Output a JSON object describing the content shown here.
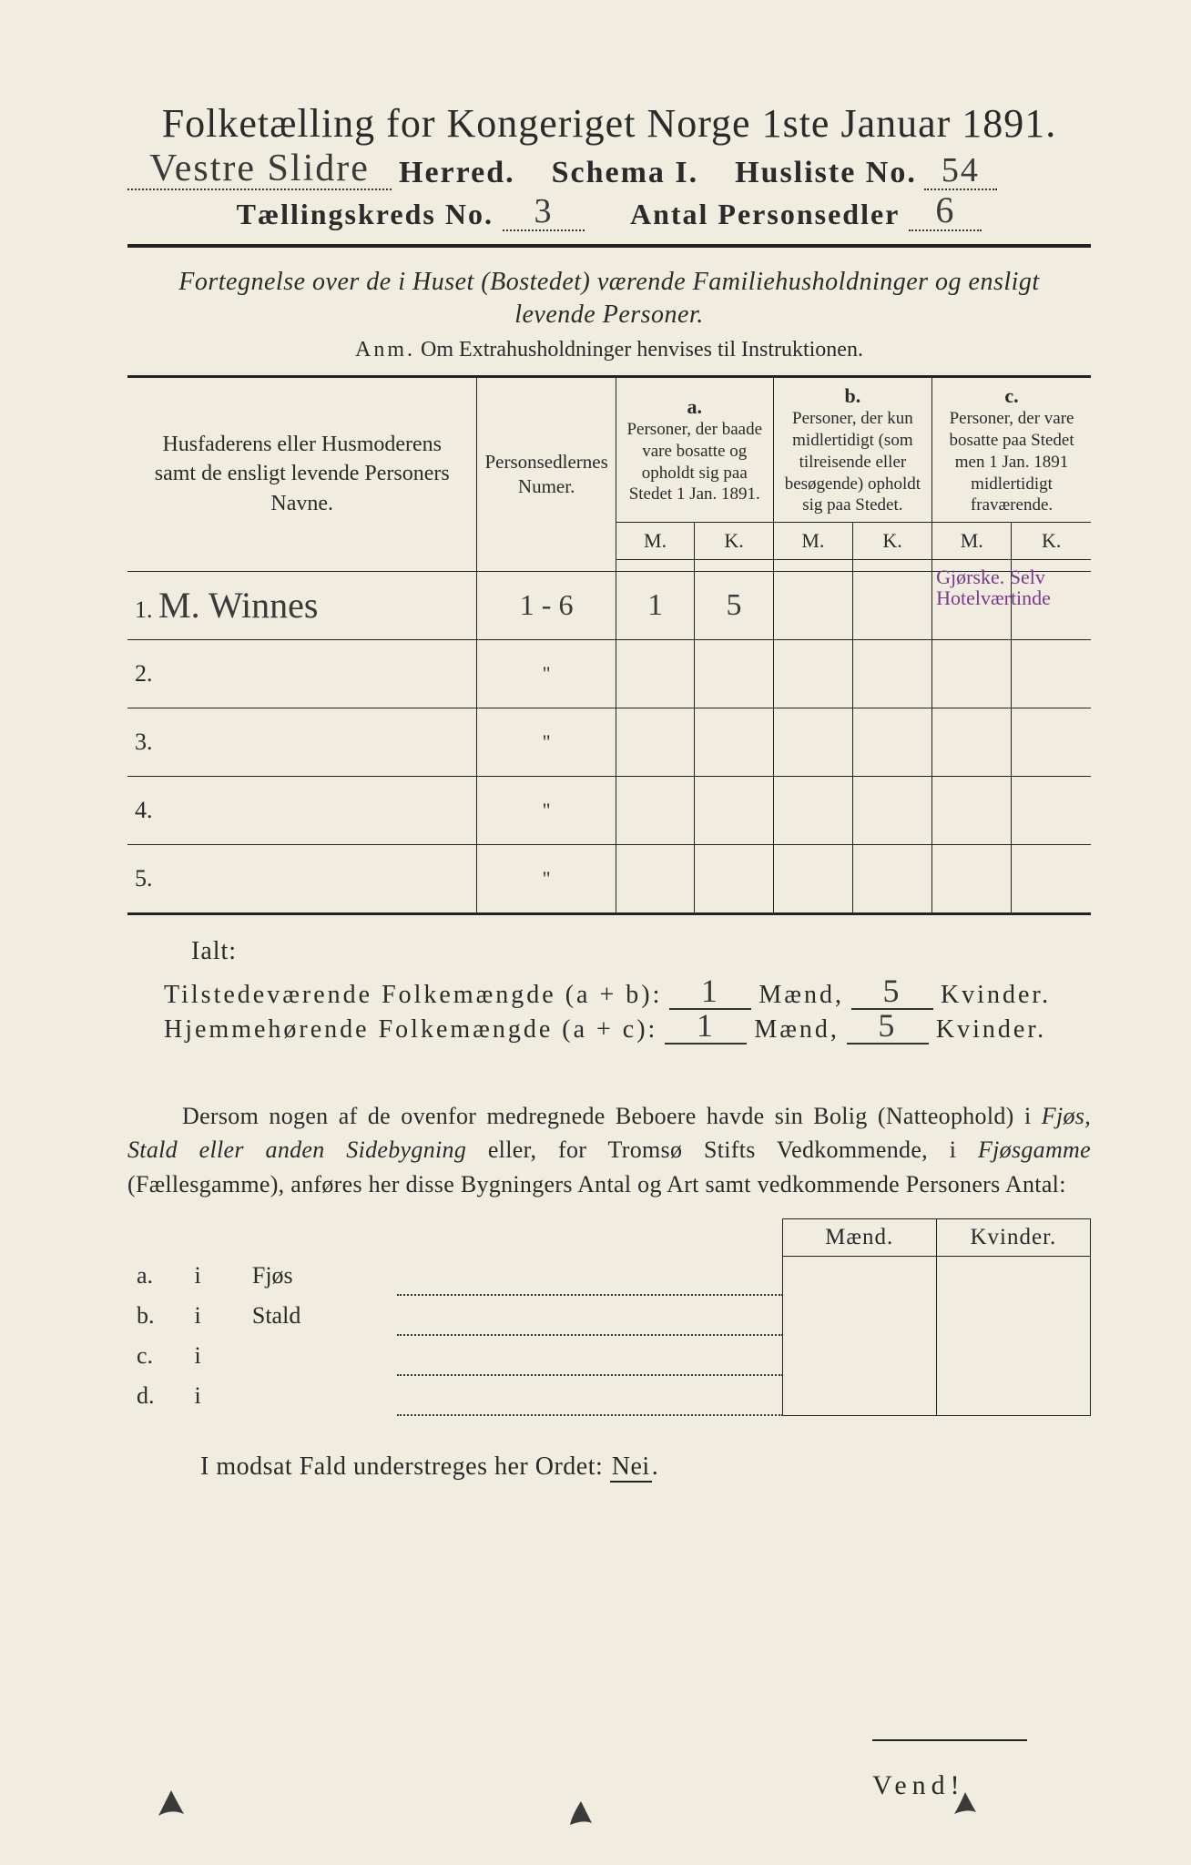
{
  "header": {
    "title": "Folketælling for Kongeriget Norge 1ste Januar 1891.",
    "herred_hw": "Vestre Slidre",
    "herred_label": "Herred.",
    "schema_label": "Schema I.",
    "husliste_label": "Husliste No.",
    "husliste_hw": "54",
    "kreds_label": "Tællingskreds No.",
    "kreds_hw": "3",
    "antal_label": "Antal Personsedler",
    "antal_hw": "6"
  },
  "intro": {
    "line1": "Fortegnelse over de i Huset (Bostedet) værende Familiehusholdninger og ensligt",
    "line2": "levende Personer.",
    "anm_label": "Anm.",
    "anm_text": "Om Extrahusholdninger henvises til Instruktionen."
  },
  "table": {
    "col_name": "Husfaderens eller Husmoderens samt de ensligt levende Personers Navne.",
    "col_num": "Personsedlernes Numer.",
    "col_a_letter": "a.",
    "col_a_desc": "Personer, der baade vare bosatte og opholdt sig paa Stedet 1 Jan. 1891.",
    "col_b_letter": "b.",
    "col_b_desc": "Personer, der kun midlertidigt (som tilreisende eller besøgende) opholdt sig paa Stedet.",
    "col_c_letter": "c.",
    "col_c_desc": "Personer, der vare bosatte paa Stedet men 1 Jan. 1891 midlertidigt fraværende.",
    "mk_m": "M.",
    "mk_k": "K.",
    "rows": [
      {
        "n": "1.",
        "name_hw": "M. Winnes",
        "num_hw": "1 - 6",
        "a_m": "1",
        "a_k": "5",
        "b_m": "",
        "b_k": "",
        "c_m": "",
        "c_k": "",
        "note": "Gjørske. Selv Hotelværtinde"
      },
      {
        "n": "2.",
        "name_hw": "",
        "num_hw": "\"",
        "a_m": "",
        "a_k": "",
        "b_m": "",
        "b_k": "",
        "c_m": "",
        "c_k": "",
        "note": ""
      },
      {
        "n": "3.",
        "name_hw": "",
        "num_hw": "\"",
        "a_m": "",
        "a_k": "",
        "b_m": "",
        "b_k": "",
        "c_m": "",
        "c_k": "",
        "note": ""
      },
      {
        "n": "4.",
        "name_hw": "",
        "num_hw": "\"",
        "a_m": "",
        "a_k": "",
        "b_m": "",
        "b_k": "",
        "c_m": "",
        "c_k": "",
        "note": ""
      },
      {
        "n": "5.",
        "name_hw": "",
        "num_hw": "\"",
        "a_m": "",
        "a_k": "",
        "b_m": "",
        "b_k": "",
        "c_m": "",
        "c_k": "",
        "note": ""
      }
    ]
  },
  "ialt": "Ialt:",
  "sums": {
    "line1_label": "Tilstedeværende Folkemængde (a + b):",
    "line2_label": "Hjemmehørende Folkemængde (a + c):",
    "maend": "Mænd,",
    "kvinder": "Kvinder.",
    "t_m": "1",
    "t_k": "5",
    "h_m": "1",
    "h_k": "5"
  },
  "para": "Dersom nogen af de ovenfor medregnede Beboere havde sin Bolig (Natteophold) i Fjøs, Stald eller anden Sidebygning eller, for Tromsø Stifts Vedkommende, i Fjøsgamme (Fællesgamme), anføres her disse Bygningers Antal og Art samt vedkommende Personers Antal:",
  "sub": {
    "head_m": "Mænd.",
    "head_k": "Kvinder.",
    "rows": [
      {
        "l": "a.",
        "i": "i",
        "label": "Fjøs"
      },
      {
        "l": "b.",
        "i": "i",
        "label": "Stald"
      },
      {
        "l": "c.",
        "i": "i",
        "label": ""
      },
      {
        "l": "d.",
        "i": "i",
        "label": ""
      }
    ]
  },
  "nei_line_pre": "I modsat Fald understreges her Ordet: ",
  "nei": "Nei",
  "vend": "Vend!",
  "colors": {
    "paper": "#f0ece0",
    "ink": "#2a2a2a",
    "purple": "#7a3a8a"
  }
}
